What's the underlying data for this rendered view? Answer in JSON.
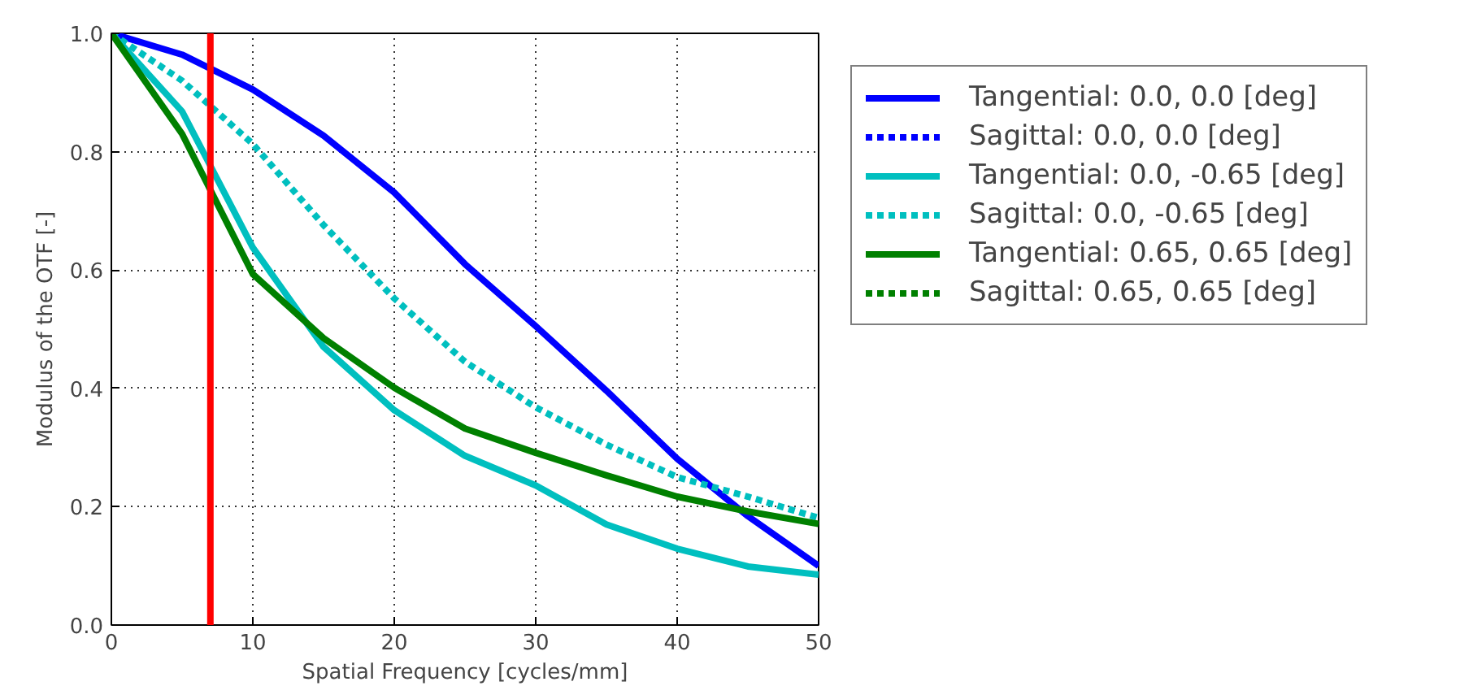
{
  "chart_data": {
    "type": "line",
    "xlabel": "Spatial Frequency [cycles/mm]",
    "ylabel": "Modulus of the OTF [-]",
    "x": [
      0,
      5,
      10,
      15,
      20,
      25,
      30,
      35,
      40,
      45,
      50
    ],
    "xlim": [
      0,
      50
    ],
    "xticks": [
      0,
      10,
      20,
      30,
      40,
      50
    ],
    "ylim": [
      0,
      1
    ],
    "yticks": [
      {
        "value": 0,
        "label": "0.0"
      },
      {
        "value": 0.2,
        "label": "0.2"
      },
      {
        "value": 0.4,
        "label": "0.4"
      },
      {
        "value": 0.6,
        "label": "0.6"
      },
      {
        "value": 0.8,
        "label": "0.8"
      },
      {
        "value": 1,
        "label": "1.0"
      }
    ],
    "grid": true,
    "legend": "right",
    "marker": "none",
    "series": [
      {
        "name": "Tangential: 0.0, 0.0 [deg]",
        "color": "#0000ff",
        "line_style": "solid",
        "values": [
          1.0,
          0.964,
          0.905,
          0.827,
          0.731,
          0.61,
          0.505,
          0.396,
          0.281,
          0.184,
          0.1
        ]
      },
      {
        "name": "Sagittal: 0.0, 0.0 [deg]",
        "color": "#0000ff",
        "line_style": "dotted",
        "values": [
          null,
          null,
          null,
          null,
          null,
          null,
          null,
          null,
          null,
          null,
          null
        ]
      },
      {
        "name": "Tangential: 0.0, -0.65 [deg]",
        "color": "#00bfbf",
        "line_style": "solid",
        "values": [
          1.0,
          0.868,
          0.638,
          0.47,
          0.363,
          0.286,
          0.236,
          0.17,
          0.129,
          0.099,
          0.085
        ]
      },
      {
        "name": "Sagittal: 0.0, -0.65 [deg]",
        "color": "#00bfbf",
        "line_style": "dotted",
        "values": [
          1.0,
          0.92,
          0.813,
          0.676,
          0.552,
          0.445,
          0.368,
          0.305,
          0.25,
          0.217,
          0.181
        ]
      },
      {
        "name": "Tangential: 0.65, 0.65 [deg]",
        "color": "#008000",
        "line_style": "solid",
        "values": [
          1.0,
          0.83,
          0.593,
          0.485,
          0.401,
          0.332,
          0.291,
          0.253,
          0.217,
          0.192,
          0.171
        ]
      },
      {
        "name": "Sagittal: 0.65, 0.65 [deg]",
        "color": "#008000",
        "line_style": "dotted",
        "values": [
          null,
          null,
          null,
          null,
          null,
          null,
          null,
          null,
          null,
          null,
          null
        ]
      }
    ],
    "ref_lines": [
      {
        "axis": "x",
        "value": 7,
        "color": "#ff0000",
        "line_style": "solid"
      }
    ]
  }
}
